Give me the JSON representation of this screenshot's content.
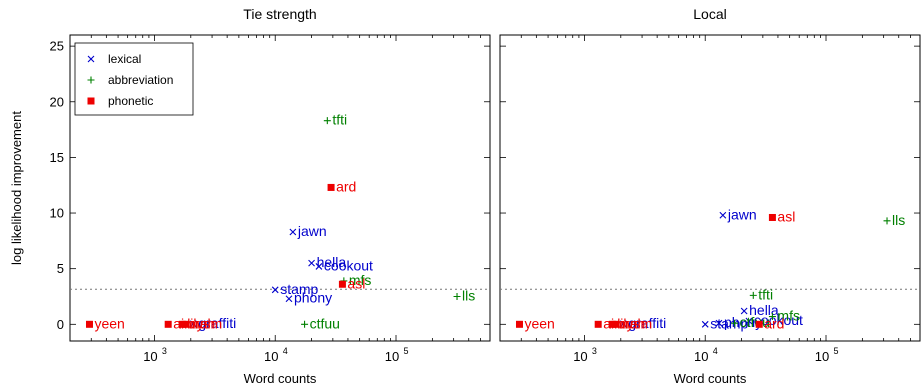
{
  "chart_data": [
    {
      "type": "scatter",
      "title": "Tie strength",
      "xlabel": "Word counts",
      "ylabel": "log likelihood improvement",
      "xscale": "log",
      "xlim": [
        200,
        600000
      ],
      "ylim": [
        -1.5,
        26
      ],
      "x_ticks": [
        {
          "value": 1000,
          "base": "10",
          "exp": "3"
        },
        {
          "value": 10000,
          "base": "10",
          "exp": "4"
        },
        {
          "value": 100000,
          "base": "10",
          "exp": "5"
        }
      ],
      "y_ticks": [
        0,
        5,
        10,
        15,
        20,
        25
      ],
      "threshold_line": 3.15,
      "legend": {
        "position": "top-left",
        "entries": [
          {
            "name": "lexical",
            "marker": "x",
            "color": "#0000cc"
          },
          {
            "name": "abbreviation",
            "marker": "+",
            "color": "#008000"
          },
          {
            "name": "phonetic",
            "marker": "square",
            "color": "#ee0000"
          }
        ]
      },
      "series": [
        {
          "name": "lexical",
          "color": "#0000cc",
          "marker": "x",
          "points": [
            {
              "label": "jawn",
              "x": 14000,
              "y": 8.3
            },
            {
              "label": "hella",
              "x": 20000,
              "y": 5.5
            },
            {
              "label": "cookout",
              "x": 23000,
              "y": 5.2
            },
            {
              "label": "stamp",
              "x": 10000,
              "y": 3.1
            },
            {
              "label": "phony",
              "x": 13000,
              "y": 2.3
            },
            {
              "label": "graffiti",
              "x": 2100,
              "y": 0.05
            }
          ]
        },
        {
          "name": "abbreviation",
          "color": "#008000",
          "marker": "+",
          "points": [
            {
              "label": "tfti",
              "x": 27000,
              "y": 18.3
            },
            {
              "label": "mfs",
              "x": 37000,
              "y": 3.9
            },
            {
              "label": "lls",
              "x": 320000,
              "y": 2.5
            },
            {
              "label": "ctfuu",
              "x": 17500,
              "y": 0.0
            }
          ]
        },
        {
          "name": "phonetic",
          "color": "#ee0000",
          "marker": "square",
          "points": [
            {
              "label": "ard",
              "x": 29000,
              "y": 12.3
            },
            {
              "label": "asl",
              "x": 36000,
              "y": 3.6
            },
            {
              "label": "yeen",
              "x": 290,
              "y": 0.0
            },
            {
              "label": "ainna",
              "x": 1300,
              "y": 0.0
            },
            {
              "label": "bruh",
              "x": 1700,
              "y": 0.0
            },
            {
              "label": "ilysm",
              "x": 1800,
              "y": 0.0
            }
          ]
        }
      ]
    },
    {
      "type": "scatter",
      "title": "Local",
      "xlabel": "Word counts",
      "xscale": "log",
      "xlim": [
        200,
        600000
      ],
      "ylim": [
        -1.5,
        26
      ],
      "x_ticks": [
        {
          "value": 1000,
          "base": "10",
          "exp": "3"
        },
        {
          "value": 10000,
          "base": "10",
          "exp": "4"
        },
        {
          "value": 100000,
          "base": "10",
          "exp": "5"
        }
      ],
      "y_ticks": [
        0,
        5,
        10,
        15,
        20,
        25
      ],
      "threshold_line": 3.15,
      "series": [
        {
          "name": "lexical",
          "color": "#0000cc",
          "marker": "x",
          "points": [
            {
              "label": "jawn",
              "x": 14000,
              "y": 9.8
            },
            {
              "label": "hella",
              "x": 21000,
              "y": 1.2
            },
            {
              "label": "cookout",
              "x": 23000,
              "y": 0.3
            },
            {
              "label": "stamp",
              "x": 10000,
              "y": 0.0
            },
            {
              "label": "phony",
              "x": 13000,
              "y": 0.1
            },
            {
              "label": "graffiti",
              "x": 2100,
              "y": 0.05
            }
          ]
        },
        {
          "name": "abbreviation",
          "color": "#008000",
          "marker": "+",
          "points": [
            {
              "label": "lls",
              "x": 320000,
              "y": 9.3
            },
            {
              "label": "tfti",
              "x": 25000,
              "y": 2.6
            },
            {
              "label": "mfs",
              "x": 36000,
              "y": 0.7
            },
            {
              "label": "ctfuu",
              "x": 17500,
              "y": 0.1
            }
          ]
        },
        {
          "name": "phonetic",
          "color": "#ee0000",
          "marker": "square",
          "points": [
            {
              "label": "asl",
              "x": 36000,
              "y": 9.6
            },
            {
              "label": "ard",
              "x": 28000,
              "y": 0.0
            },
            {
              "label": "yeen",
              "x": 290,
              "y": 0.0
            },
            {
              "label": "ainna",
              "x": 1300,
              "y": 0.0
            },
            {
              "label": "bruh",
              "x": 1700,
              "y": 0.0
            },
            {
              "label": "ilysm",
              "x": 1800,
              "y": 0.0
            }
          ]
        }
      ]
    }
  ]
}
